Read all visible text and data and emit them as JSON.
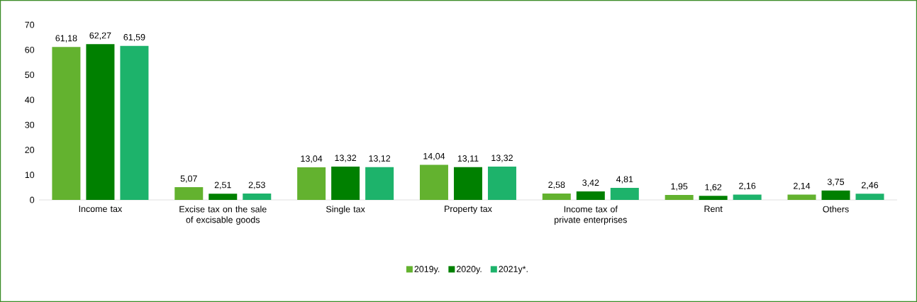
{
  "chart_data": {
    "type": "bar",
    "categories": [
      "Income tax",
      "Excise tax on the sale of excisable goods",
      "Single tax",
      "Property tax",
      "Income tax of private enterprises",
      "Rent",
      "Others"
    ],
    "series": [
      {
        "name": "2019y.",
        "color": "#63b22f",
        "values": [
          61.18,
          5.07,
          13.04,
          14.04,
          2.58,
          1.95,
          2.14
        ],
        "value_labels": [
          "61,18",
          "5,07",
          "13,04",
          "14,04",
          "2,58",
          "1,95",
          "2,14"
        ]
      },
      {
        "name": "2020y.",
        "color": "#008000",
        "values": [
          62.27,
          2.51,
          13.32,
          13.11,
          3.42,
          1.62,
          3.75
        ],
        "value_labels": [
          "62,27",
          "2,51",
          "13,32",
          "13,11",
          "3,42",
          "1,62",
          "3,75"
        ]
      },
      {
        "name": "2021y*.",
        "color": "#1db36b",
        "values": [
          61.59,
          2.53,
          13.12,
          13.32,
          4.81,
          2.16,
          2.46
        ],
        "value_labels": [
          "61,59",
          "2,53",
          "13,12",
          "13,32",
          "4,81",
          "2,16",
          "2,46"
        ]
      }
    ],
    "ylim": [
      0,
      70
    ],
    "yticks": [
      0,
      10,
      20,
      30,
      40,
      50,
      60,
      70
    ],
    "legend": "bottom"
  }
}
